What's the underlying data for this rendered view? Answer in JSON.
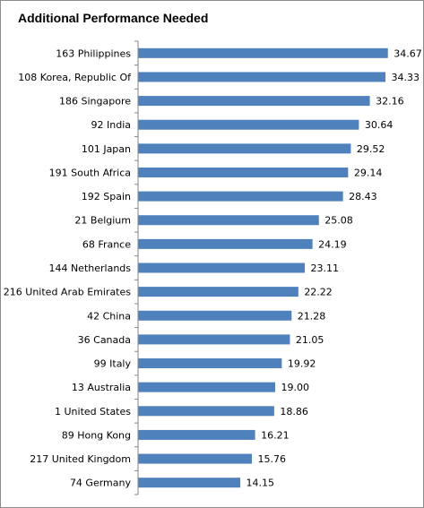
{
  "chart_data": {
    "type": "bar",
    "orientation": "horizontal",
    "title": "Additional Performance Needed",
    "categories": [
      "163 Philippines",
      "108 Korea, Republic Of",
      "186 Singapore",
      "92 India",
      "101 Japan",
      "191 South Africa",
      "192 Spain",
      "21 Belgium",
      "68 France",
      "144 Netherlands",
      "216 United Arab Emirates",
      "42 China",
      "36 Canada",
      "99 Italy",
      "13 Australia",
      "1 United States",
      "89 Hong Kong",
      "217 United Kingdom",
      "74 Germany"
    ],
    "values": [
      34.67,
      34.33,
      32.16,
      30.64,
      29.52,
      29.14,
      28.43,
      25.08,
      24.19,
      23.11,
      22.22,
      21.28,
      21.05,
      19.92,
      19.0,
      18.86,
      16.21,
      15.76,
      14.15
    ],
    "value_labels": [
      "34.67",
      "34.33",
      "32.16",
      "30.64",
      "29.52",
      "29.14",
      "28.43",
      "25.08",
      "24.19",
      "23.11",
      "22.22",
      "21.28",
      "21.05",
      "19.92",
      "19.00",
      "18.86",
      "16.21",
      "15.76",
      "14.15"
    ],
    "xlim": [
      0,
      40
    ],
    "bar_color": "#4f81bd",
    "axis_color": "#868686",
    "grid": false,
    "legend": false
  }
}
